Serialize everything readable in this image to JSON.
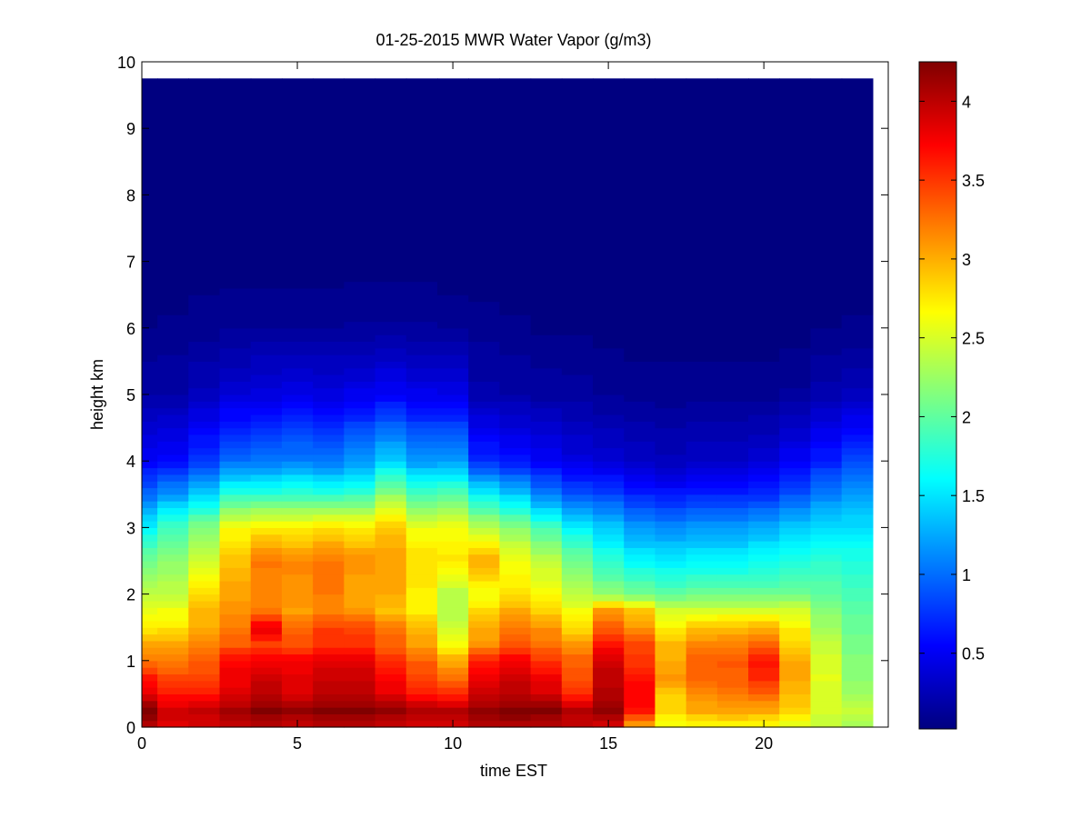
{
  "chart_data": {
    "type": "heatmap",
    "title": "01-25-2015 MWR Water Vapor (g/m3)",
    "xlabel": "time EST",
    "ylabel": "height km",
    "xlim": [
      0,
      24
    ],
    "ylim": [
      0,
      10
    ],
    "x_ticks": [
      "0",
      "5",
      "10",
      "15",
      "20"
    ],
    "x_tick_values": [
      0,
      5,
      10,
      15,
      20
    ],
    "y_ticks": [
      "0",
      "1",
      "2",
      "3",
      "4",
      "5",
      "6",
      "7",
      "8",
      "9",
      "10"
    ],
    "y_tick_values": [
      0,
      1,
      2,
      3,
      4,
      5,
      6,
      7,
      8,
      9,
      10
    ],
    "colorbar": {
      "label": "",
      "range": [
        0.02,
        4.25
      ],
      "ticks": [
        "0.5",
        "1",
        "1.5",
        "2",
        "2.5",
        "3",
        "3.5",
        "4"
      ],
      "tick_values": [
        0.5,
        1,
        1.5,
        2,
        2.5,
        3,
        3.5,
        4
      ],
      "colormap": "jet"
    },
    "grid": false,
    "time_x": [
      0,
      1,
      2,
      3,
      4,
      5,
      6,
      7,
      8,
      9,
      10,
      11,
      12,
      13,
      14,
      15,
      16,
      17,
      18,
      19,
      20,
      21,
      22,
      23
    ],
    "data_top_height": 9.75,
    "profile_heights_km": [
      0,
      0.25,
      0.5,
      0.75,
      1,
      1.25,
      1.5,
      1.75,
      2,
      2.5,
      3,
      3.5,
      4,
      5,
      6,
      7,
      9.75
    ],
    "profiles_g_m3": [
      [
        3.95,
        4.25,
        3.8,
        3.6,
        3.2,
        3.0,
        2.7,
        2.55,
        2.4,
        2.1,
        1.6,
        1.0,
        0.55,
        0.22,
        0.08,
        0.04,
        0.02
      ],
      [
        3.8,
        3.9,
        3.6,
        3.4,
        3.2,
        3.0,
        2.75,
        2.6,
        2.4,
        2.2,
        1.9,
        1.2,
        0.6,
        0.22,
        0.1,
        0.04,
        0.02
      ],
      [
        3.85,
        3.95,
        3.6,
        3.4,
        3.35,
        3.15,
        3.0,
        2.95,
        2.8,
        2.5,
        2.15,
        1.45,
        0.8,
        0.3,
        0.12,
        0.05,
        0.02
      ],
      [
        3.95,
        4.1,
        3.8,
        3.75,
        3.7,
        3.3,
        3.2,
        3.1,
        3.05,
        2.9,
        2.65,
        1.8,
        1.0,
        0.4,
        0.14,
        0.05,
        0.02
      ],
      [
        3.95,
        4.2,
        3.95,
        3.9,
        3.75,
        3.45,
        3.8,
        3.2,
        3.15,
        3.2,
        2.75,
        1.8,
        1.05,
        0.45,
        0.15,
        0.05,
        0.02
      ],
      [
        3.9,
        4.15,
        3.85,
        3.8,
        3.75,
        3.35,
        3.3,
        3.05,
        3.1,
        3.15,
        2.7,
        1.85,
        1.1,
        0.5,
        0.15,
        0.05,
        0.02
      ],
      [
        3.95,
        4.2,
        3.95,
        3.9,
        3.8,
        3.5,
        3.45,
        3.15,
        3.2,
        3.2,
        2.8,
        1.8,
        1.05,
        0.45,
        0.15,
        0.05,
        0.02
      ],
      [
        3.95,
        4.2,
        3.95,
        3.9,
        3.8,
        3.5,
        3.4,
        3.1,
        3.0,
        3.1,
        2.75,
        1.85,
        1.2,
        0.5,
        0.16,
        0.05,
        0.02
      ],
      [
        3.9,
        4.15,
        3.8,
        3.7,
        3.5,
        3.3,
        3.2,
        2.9,
        3.0,
        3.05,
        2.9,
        2.2,
        1.45,
        0.55,
        0.17,
        0.05,
        0.02
      ],
      [
        3.85,
        4.05,
        3.6,
        3.45,
        3.3,
        3.05,
        2.95,
        2.7,
        2.7,
        2.8,
        2.6,
        1.9,
        1.2,
        0.5,
        0.16,
        0.05,
        0.02
      ],
      [
        3.85,
        4.0,
        3.55,
        3.25,
        3.0,
        2.65,
        2.45,
        2.35,
        2.35,
        2.75,
        2.6,
        2.0,
        1.2,
        0.5,
        0.14,
        0.04,
        0.02
      ],
      [
        4.0,
        4.15,
        3.9,
        3.75,
        3.55,
        3.1,
        3.0,
        2.8,
        2.6,
        3.0,
        2.4,
        1.6,
        0.75,
        0.25,
        0.12,
        0.04,
        0.02
      ],
      [
        4.0,
        4.2,
        3.95,
        3.9,
        3.75,
        3.35,
        3.2,
        3.0,
        2.75,
        2.6,
        2.2,
        1.4,
        0.65,
        0.22,
        0.1,
        0.04,
        0.02
      ],
      [
        3.95,
        4.2,
        3.85,
        3.75,
        3.5,
        3.25,
        3.1,
        2.85,
        2.65,
        2.4,
        1.9,
        1.1,
        0.55,
        0.2,
        0.08,
        0.04,
        0.02
      ],
      [
        3.95,
        4.0,
        3.55,
        3.35,
        3.3,
        3.1,
        2.8,
        2.6,
        2.4,
        2.1,
        1.6,
        0.9,
        0.45,
        0.18,
        0.07,
        0.03,
        0.02
      ],
      [
        3.85,
        4.15,
        4.0,
        3.95,
        3.9,
        3.65,
        3.3,
        3.1,
        2.2,
        1.8,
        1.4,
        0.85,
        0.4,
        0.15,
        0.06,
        0.03,
        0.02
      ],
      [
        2.95,
        3.6,
        3.75,
        3.6,
        3.5,
        3.4,
        3.1,
        2.9,
        2.1,
        1.6,
        1.2,
        0.7,
        0.35,
        0.13,
        0.05,
        0.03,
        0.02
      ],
      [
        2.6,
        2.8,
        2.85,
        3.1,
        3.0,
        2.95,
        2.7,
        2.5,
        2.0,
        1.55,
        1.15,
        0.65,
        0.3,
        0.12,
        0.05,
        0.03,
        0.02
      ],
      [
        2.6,
        3.0,
        3.15,
        3.3,
        3.3,
        3.15,
        2.9,
        2.5,
        2.05,
        1.6,
        1.2,
        0.7,
        0.35,
        0.12,
        0.05,
        0.03,
        0.02
      ],
      [
        2.6,
        3.05,
        3.2,
        3.3,
        3.35,
        3.15,
        2.95,
        2.5,
        2.05,
        1.6,
        1.2,
        0.7,
        0.35,
        0.12,
        0.05,
        0.03,
        0.02
      ],
      [
        2.6,
        3.0,
        3.3,
        3.55,
        3.6,
        3.3,
        3.0,
        2.5,
        2.05,
        1.65,
        1.3,
        0.75,
        0.4,
        0.13,
        0.05,
        0.03,
        0.02
      ],
      [
        2.5,
        2.85,
        2.9,
        3.05,
        3.0,
        2.85,
        2.7,
        2.5,
        2.1,
        1.75,
        1.4,
        0.9,
        0.55,
        0.16,
        0.06,
        0.03,
        0.02
      ],
      [
        2.4,
        2.5,
        2.5,
        2.55,
        2.5,
        2.4,
        2.25,
        2.2,
        2.0,
        1.8,
        1.5,
        1.1,
        0.7,
        0.25,
        0.08,
        0.04,
        0.02
      ],
      [
        2.3,
        2.4,
        2.25,
        2.2,
        2.15,
        2.1,
        2.05,
        2.0,
        1.9,
        1.75,
        1.5,
        1.2,
        0.85,
        0.3,
        0.1,
        0.04,
        0.02
      ]
    ]
  }
}
